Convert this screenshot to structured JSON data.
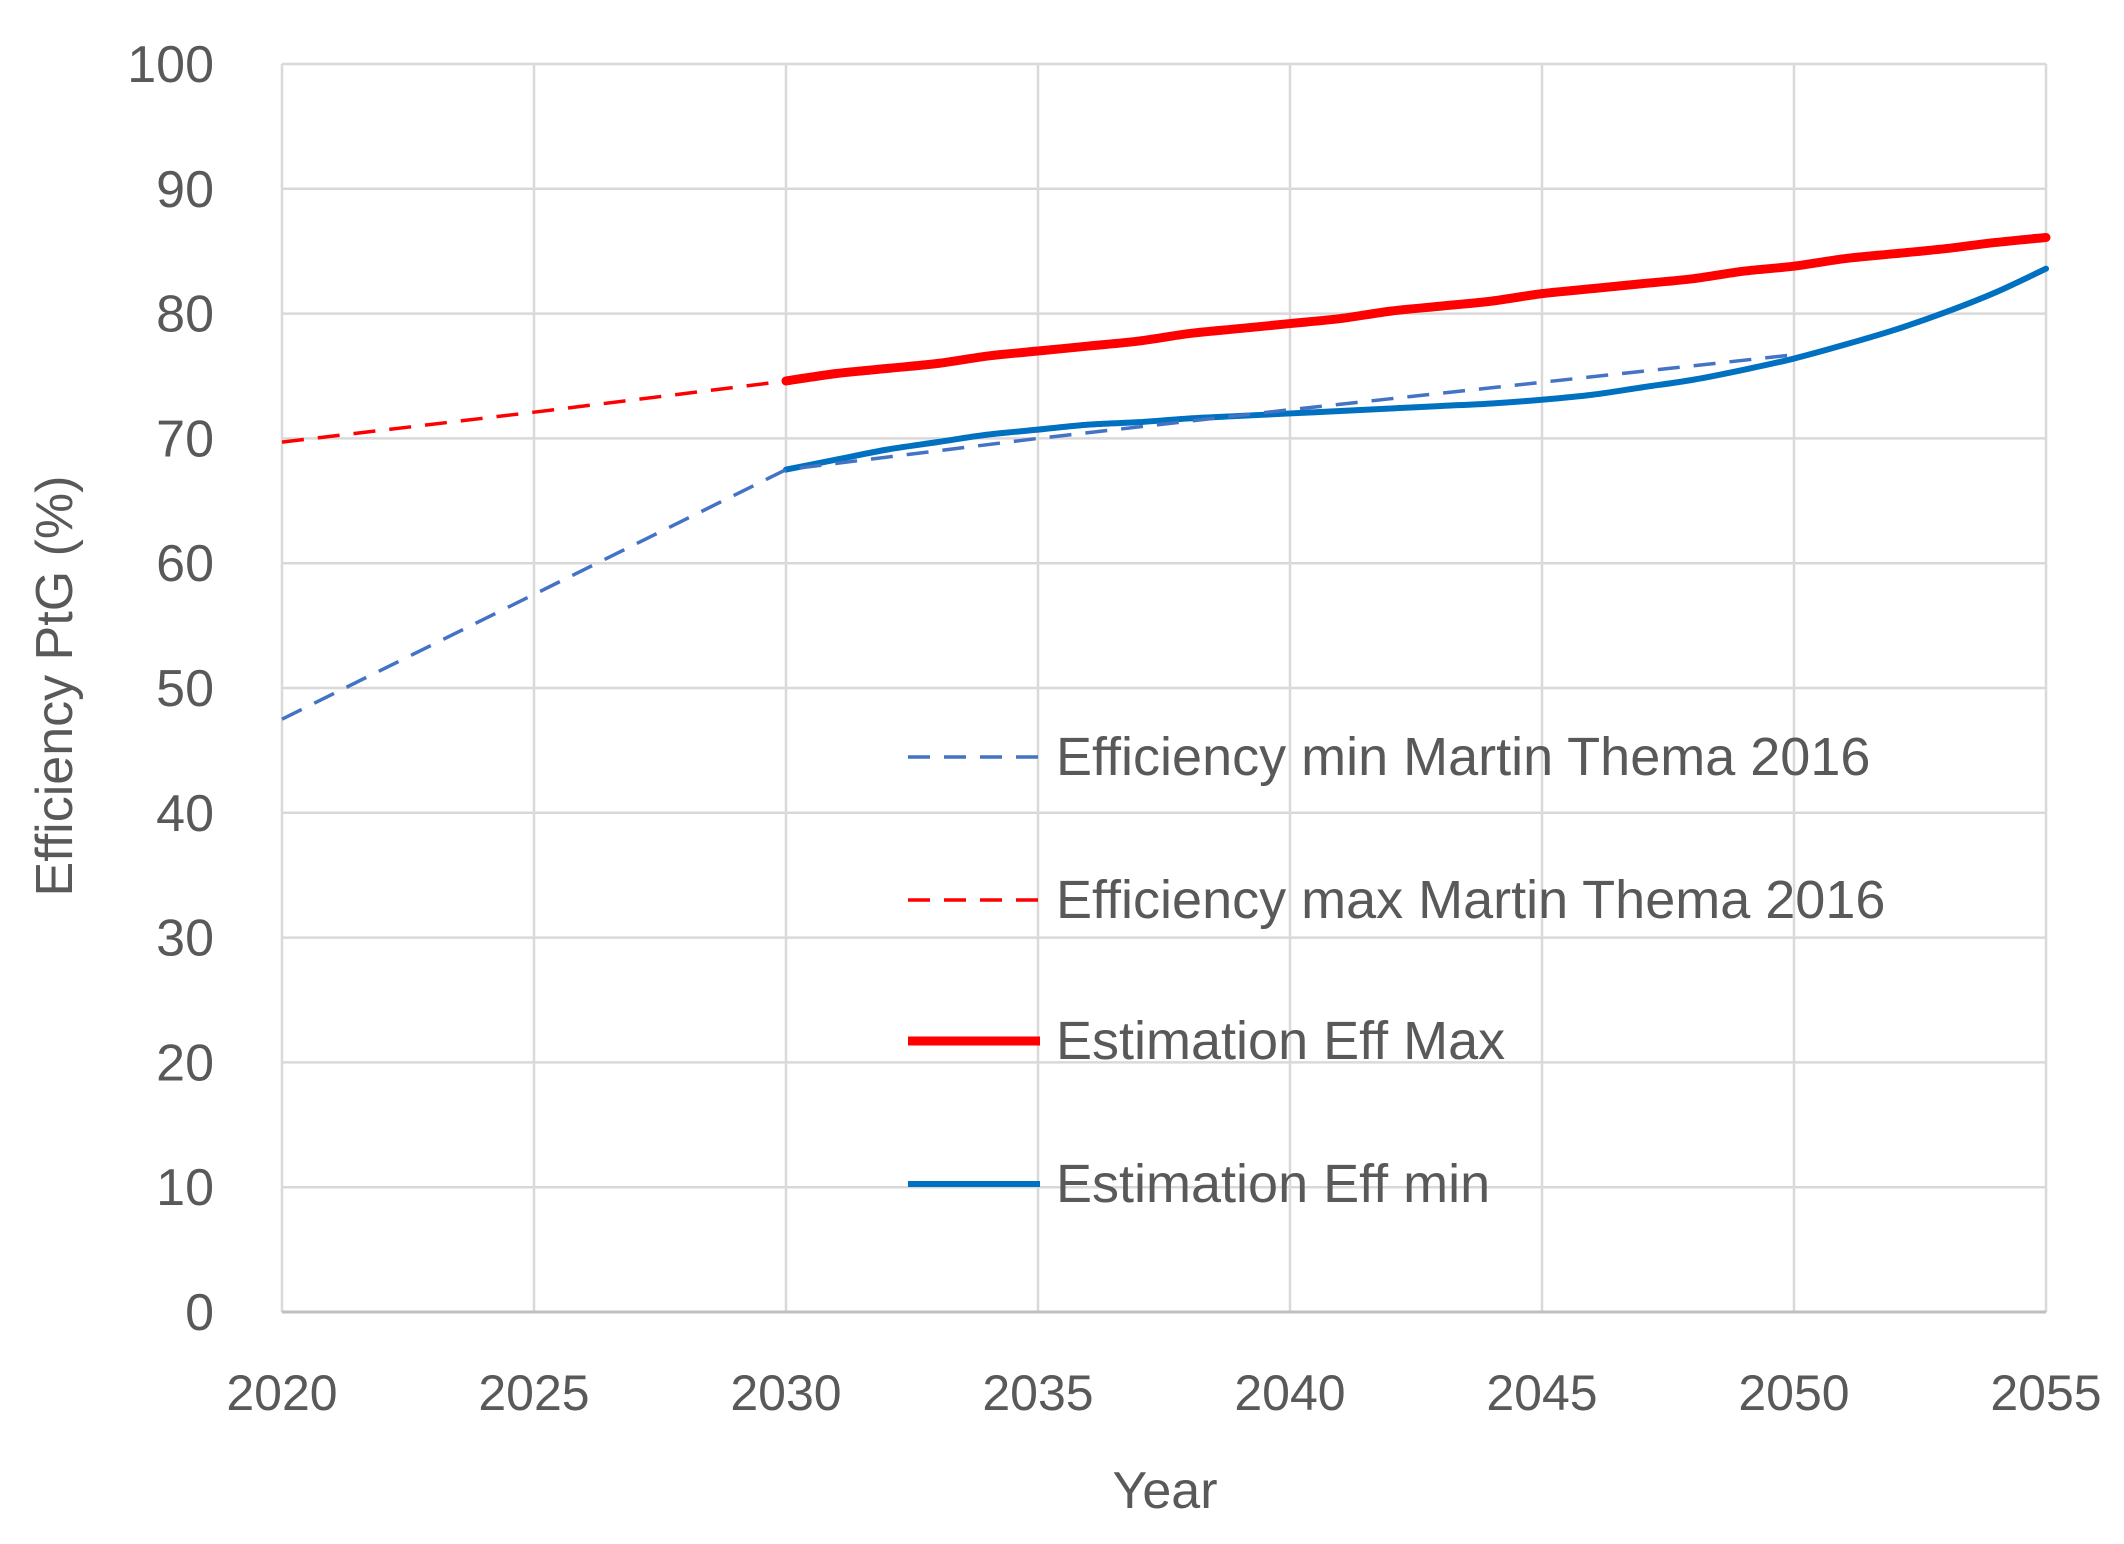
{
  "chart_data": {
    "type": "line",
    "title": "",
    "xlabel": "Year",
    "ylabel": "Efficiency PtG (%)",
    "xlim": [
      2020,
      2055
    ],
    "ylim": [
      0,
      100
    ],
    "x_ticks": [
      2020,
      2025,
      2030,
      2035,
      2040,
      2045,
      2050,
      2055
    ],
    "y_ticks": [
      0,
      10,
      20,
      30,
      40,
      50,
      60,
      70,
      80,
      90,
      100
    ],
    "grid": true,
    "legend_position": "center-right",
    "series": [
      {
        "name": "Efficiency min Martin Thema 2016",
        "color": "#4472C4",
        "style": "dashed",
        "x": [
          2020,
          2025,
          2030,
          2035,
          2040,
          2045,
          2050
        ],
        "y": [
          47.5,
          57.5,
          67.5,
          70,
          72.3,
          74.5,
          76.7
        ]
      },
      {
        "name": "Efficiency max Martin Thema 2016",
        "color": "#FF0000",
        "style": "dashed",
        "x": [
          2020,
          2025,
          2030
        ],
        "y": [
          69.7,
          72.1,
          74.6
        ]
      },
      {
        "name": "Estimation Eff Max",
        "color": "#FF0000",
        "style": "solid-thick",
        "x": [
          2030,
          2031,
          2032,
          2033,
          2034,
          2035,
          2036,
          2037,
          2038,
          2039,
          2040,
          2041,
          2042,
          2043,
          2044,
          2045,
          2046,
          2047,
          2048,
          2049,
          2050,
          2051,
          2052,
          2053,
          2054,
          2055
        ],
        "y": [
          74.6,
          75.2,
          75.6,
          76.0,
          76.6,
          77.0,
          77.4,
          77.8,
          78.4,
          78.8,
          79.2,
          79.6,
          80.2,
          80.6,
          81.0,
          81.6,
          82.0,
          82.4,
          82.8,
          83.4,
          83.8,
          84.4,
          84.8,
          85.2,
          85.7,
          86.1
        ]
      },
      {
        "name": "Estimation Eff min",
        "color": "#0070C0",
        "style": "solid",
        "x": [
          2030,
          2031,
          2032,
          2033,
          2034,
          2035,
          2036,
          2037,
          2038,
          2039,
          2040,
          2041,
          2042,
          2043,
          2044,
          2045,
          2046,
          2047,
          2048,
          2049,
          2050,
          2051,
          2052,
          2053,
          2054,
          2055
        ],
        "y": [
          67.5,
          68.3,
          69.1,
          69.7,
          70.3,
          70.7,
          71.1,
          71.3,
          71.6,
          71.8,
          72.0,
          72.2,
          72.4,
          72.6,
          72.8,
          73.1,
          73.5,
          74.1,
          74.7,
          75.5,
          76.4,
          77.5,
          78.7,
          80.1,
          81.7,
          83.6
        ]
      }
    ]
  }
}
